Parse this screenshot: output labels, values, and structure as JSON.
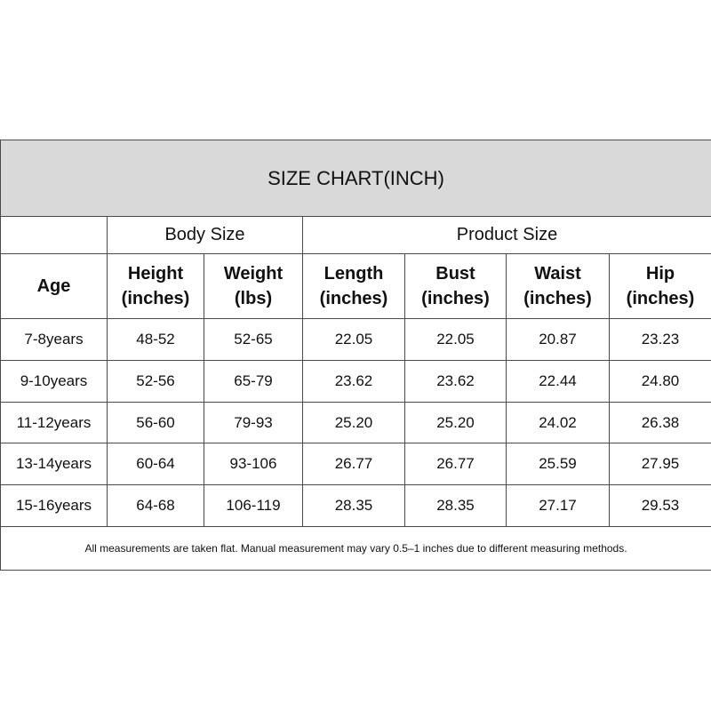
{
  "title": "SIZE CHART(INCH)",
  "groups": [
    "Body Size",
    "Product Size"
  ],
  "columns": [
    {
      "name": "Age"
    },
    {
      "name": "Height",
      "unit": "(inches)"
    },
    {
      "name": "Weight",
      "unit": "(lbs)"
    },
    {
      "name": "Length",
      "unit": "(inches)"
    },
    {
      "name": "Bust",
      "unit": "(inches)"
    },
    {
      "name": "Waist",
      "unit": "(inches)"
    },
    {
      "name": "Hip",
      "unit": "(inches)"
    }
  ],
  "rows": [
    [
      "7-8years",
      "48-52",
      "52-65",
      "22.05",
      "22.05",
      "20.87",
      "23.23"
    ],
    [
      "9-10years",
      "52-56",
      "65-79",
      "23.62",
      "23.62",
      "22.44",
      "24.80"
    ],
    [
      "11-12years",
      "56-60",
      "79-93",
      "25.20",
      "25.20",
      "24.02",
      "26.38"
    ],
    [
      "13-14years",
      "60-64",
      "93-106",
      "26.77",
      "26.77",
      "25.59",
      "27.95"
    ],
    [
      "15-16years",
      "64-68",
      "106-119",
      "28.35",
      "28.35",
      "27.17",
      "29.53"
    ]
  ],
  "note": "All measurements are taken flat. Manual measurement may vary 0.5–1 inches due to different measuring methods."
}
